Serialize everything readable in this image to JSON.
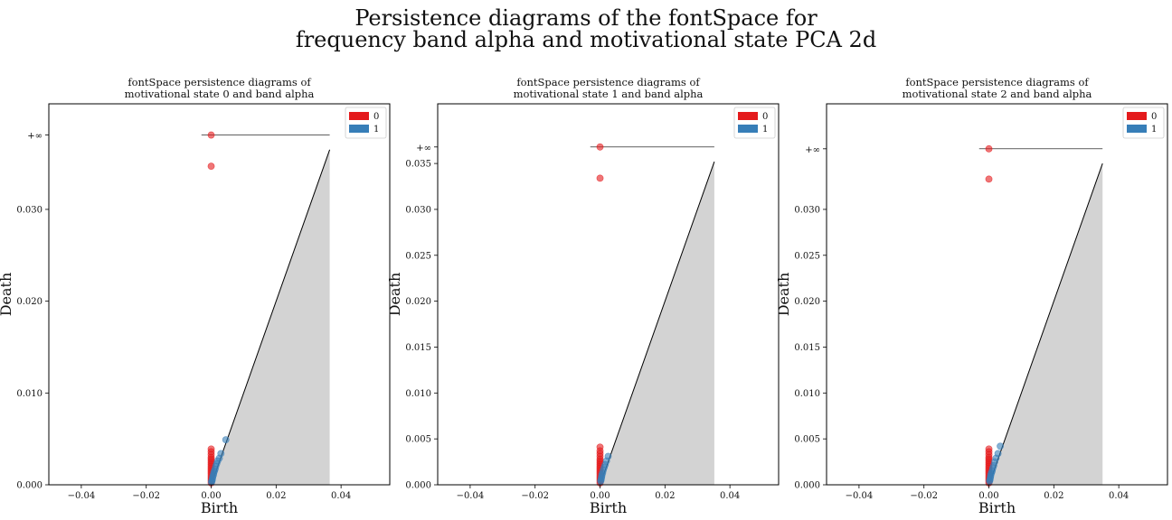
{
  "figure": {
    "title_line1": "Persistence diagrams of the fontSpace for",
    "title_line2": "frequency band alpha and motivational state PCA 2d"
  },
  "colors": {
    "h0": "#e41a1c",
    "h1": "#377eb8",
    "shade": "#d3d3d3"
  },
  "chart_data": [
    {
      "type": "scatter",
      "title_line1": "fontSpace persistence diagrams of",
      "title_line2": "motivational state 0 and band alpha",
      "xlabel": "Birth",
      "ylabel": "Death",
      "xlim": [
        -0.05,
        0.055
      ],
      "ylim": [
        0,
        0.0415
      ],
      "xticks": [
        -0.04,
        -0.02,
        0.0,
        0.02,
        0.04
      ],
      "xtick_labels": [
        "−0.04",
        "−0.02",
        "0.00",
        "0.02",
        "0.04"
      ],
      "yticks": [
        0.0,
        0.01,
        0.02,
        0.03
      ],
      "ytick_labels": [
        "0.000",
        "0.010",
        "0.020",
        "0.030"
      ],
      "inf_value": 0.0381,
      "inf_label": "+∞",
      "diag_max": 0.0365,
      "legend": [
        "0",
        "1"
      ],
      "legend_position": "upper right",
      "series": [
        {
          "name": "0",
          "points": [
            [
              0,
              0.0381
            ],
            [
              0,
              0.0347
            ],
            [
              0,
              0.0039
            ],
            [
              0,
              0.0036
            ],
            [
              0,
              0.0033
            ],
            [
              0,
              0.003
            ],
            [
              0,
              0.0028
            ],
            [
              0,
              0.0026
            ],
            [
              0,
              0.0024
            ],
            [
              0,
              0.0022
            ],
            [
              0,
              0.002
            ],
            [
              0,
              0.0018
            ],
            [
              0,
              0.0016
            ],
            [
              0,
              0.0014
            ],
            [
              0,
              0.0012
            ],
            [
              0,
              0.001
            ],
            [
              0,
              0.0008
            ],
            [
              0,
              0.0006
            ],
            [
              0,
              0.0004
            ],
            [
              0,
              0.0002
            ]
          ]
        },
        {
          "name": "1",
          "points": [
            [
              0.0045,
              0.0049
            ],
            [
              0.003,
              0.0034
            ],
            [
              0.0025,
              0.0029
            ],
            [
              0.002,
              0.0026
            ],
            [
              0.0017,
              0.0023
            ],
            [
              0.0014,
              0.002
            ],
            [
              0.0012,
              0.0017
            ],
            [
              0.001,
              0.0015
            ],
            [
              0.0008,
              0.0013
            ],
            [
              0.0007,
              0.0011
            ],
            [
              0.0005,
              0.0009
            ],
            [
              0.0004,
              0.0007
            ],
            [
              0.0003,
              0.0005
            ],
            [
              0.0002,
              0.0004
            ],
            [
              0.0001,
              0.0003
            ]
          ]
        }
      ]
    },
    {
      "type": "scatter",
      "title_line1": "fontSpace persistence diagrams of",
      "title_line2": "motivational state 1 and band alpha",
      "xlabel": "Birth",
      "ylabel": "Death",
      "xlim": [
        -0.05,
        0.055
      ],
      "ylim": [
        0,
        0.0415
      ],
      "xticks": [
        -0.04,
        -0.02,
        0.0,
        0.02,
        0.04
      ],
      "xtick_labels": [
        "−0.04",
        "−0.02",
        "0.00",
        "0.02",
        "0.04"
      ],
      "yticks": [
        0.0,
        0.005,
        0.01,
        0.015,
        0.02,
        0.025,
        0.03,
        0.035
      ],
      "ytick_labels": [
        "0.000",
        "0.005",
        "0.010",
        "0.015",
        "0.020",
        "0.025",
        "0.030",
        "0.035"
      ],
      "inf_value": 0.0368,
      "inf_label": "+∞",
      "diag_max": 0.0352,
      "legend": [
        "0",
        "1"
      ],
      "legend_position": "upper right",
      "series": [
        {
          "name": "0",
          "points": [
            [
              0,
              0.0368
            ],
            [
              0,
              0.0334
            ],
            [
              0,
              0.0041
            ],
            [
              0,
              0.0037
            ],
            [
              0,
              0.0034
            ],
            [
              0,
              0.0031
            ],
            [
              0,
              0.0028
            ],
            [
              0,
              0.0026
            ],
            [
              0,
              0.0024
            ],
            [
              0,
              0.0022
            ],
            [
              0,
              0.002
            ],
            [
              0,
              0.0018
            ],
            [
              0,
              0.0016
            ],
            [
              0,
              0.0014
            ],
            [
              0,
              0.0012
            ],
            [
              0,
              0.001
            ],
            [
              0,
              0.0008
            ],
            [
              0,
              0.0006
            ],
            [
              0,
              0.0004
            ],
            [
              0,
              0.0002
            ]
          ]
        },
        {
          "name": "1",
          "points": [
            [
              0.0025,
              0.0031
            ],
            [
              0.002,
              0.0026
            ],
            [
              0.0016,
              0.0022
            ],
            [
              0.0013,
              0.0019
            ],
            [
              0.001,
              0.0016
            ],
            [
              0.0008,
              0.0013
            ],
            [
              0.0006,
              0.0011
            ],
            [
              0.0005,
              0.0009
            ],
            [
              0.0004,
              0.0007
            ],
            [
              0.0003,
              0.0005
            ],
            [
              0.0002,
              0.0004
            ]
          ]
        }
      ]
    },
    {
      "type": "scatter",
      "title_line1": "fontSpace persistence diagrams of",
      "title_line2": "motivational state 2 and band alpha",
      "xlabel": "Birth",
      "ylabel": "Death",
      "xlim": [
        -0.05,
        0.055
      ],
      "ylim": [
        0,
        0.0415
      ],
      "xticks": [
        -0.04,
        -0.02,
        0.0,
        0.02,
        0.04
      ],
      "xtick_labels": [
        "−0.04",
        "−0.02",
        "0.00",
        "0.02",
        "0.04"
      ],
      "yticks": [
        0.0,
        0.005,
        0.01,
        0.015,
        0.02,
        0.025,
        0.03
      ],
      "ytick_labels": [
        "0.000",
        "0.005",
        "0.010",
        "0.015",
        "0.020",
        "0.025",
        "0.030"
      ],
      "inf_value": 0.0366,
      "inf_label": "+∞",
      "diag_max": 0.035,
      "legend": [
        "0",
        "1"
      ],
      "legend_position": "upper right",
      "series": [
        {
          "name": "0",
          "points": [
            [
              0,
              0.0366
            ],
            [
              0,
              0.0333
            ],
            [
              0,
              0.0039
            ],
            [
              0,
              0.0036
            ],
            [
              0,
              0.0033
            ],
            [
              0,
              0.003
            ],
            [
              0,
              0.0028
            ],
            [
              0,
              0.0026
            ],
            [
              0,
              0.0024
            ],
            [
              0,
              0.0022
            ],
            [
              0,
              0.002
            ],
            [
              0,
              0.0018
            ],
            [
              0,
              0.0016
            ],
            [
              0,
              0.0014
            ],
            [
              0,
              0.0012
            ],
            [
              0,
              0.001
            ],
            [
              0,
              0.0008
            ],
            [
              0,
              0.0006
            ],
            [
              0,
              0.0004
            ],
            [
              0,
              0.0002
            ]
          ]
        },
        {
          "name": "1",
          "points": [
            [
              0.0035,
              0.0042
            ],
            [
              0.0028,
              0.0034
            ],
            [
              0.0022,
              0.0029
            ],
            [
              0.0018,
              0.0025
            ],
            [
              0.0015,
              0.0021
            ],
            [
              0.0012,
              0.0018
            ],
            [
              0.001,
              0.0015
            ],
            [
              0.0008,
              0.0013
            ],
            [
              0.0006,
              0.0011
            ],
            [
              0.0005,
              0.0009
            ],
            [
              0.0004,
              0.0007
            ],
            [
              0.0003,
              0.0005
            ],
            [
              0.0002,
              0.0004
            ]
          ]
        }
      ]
    }
  ]
}
